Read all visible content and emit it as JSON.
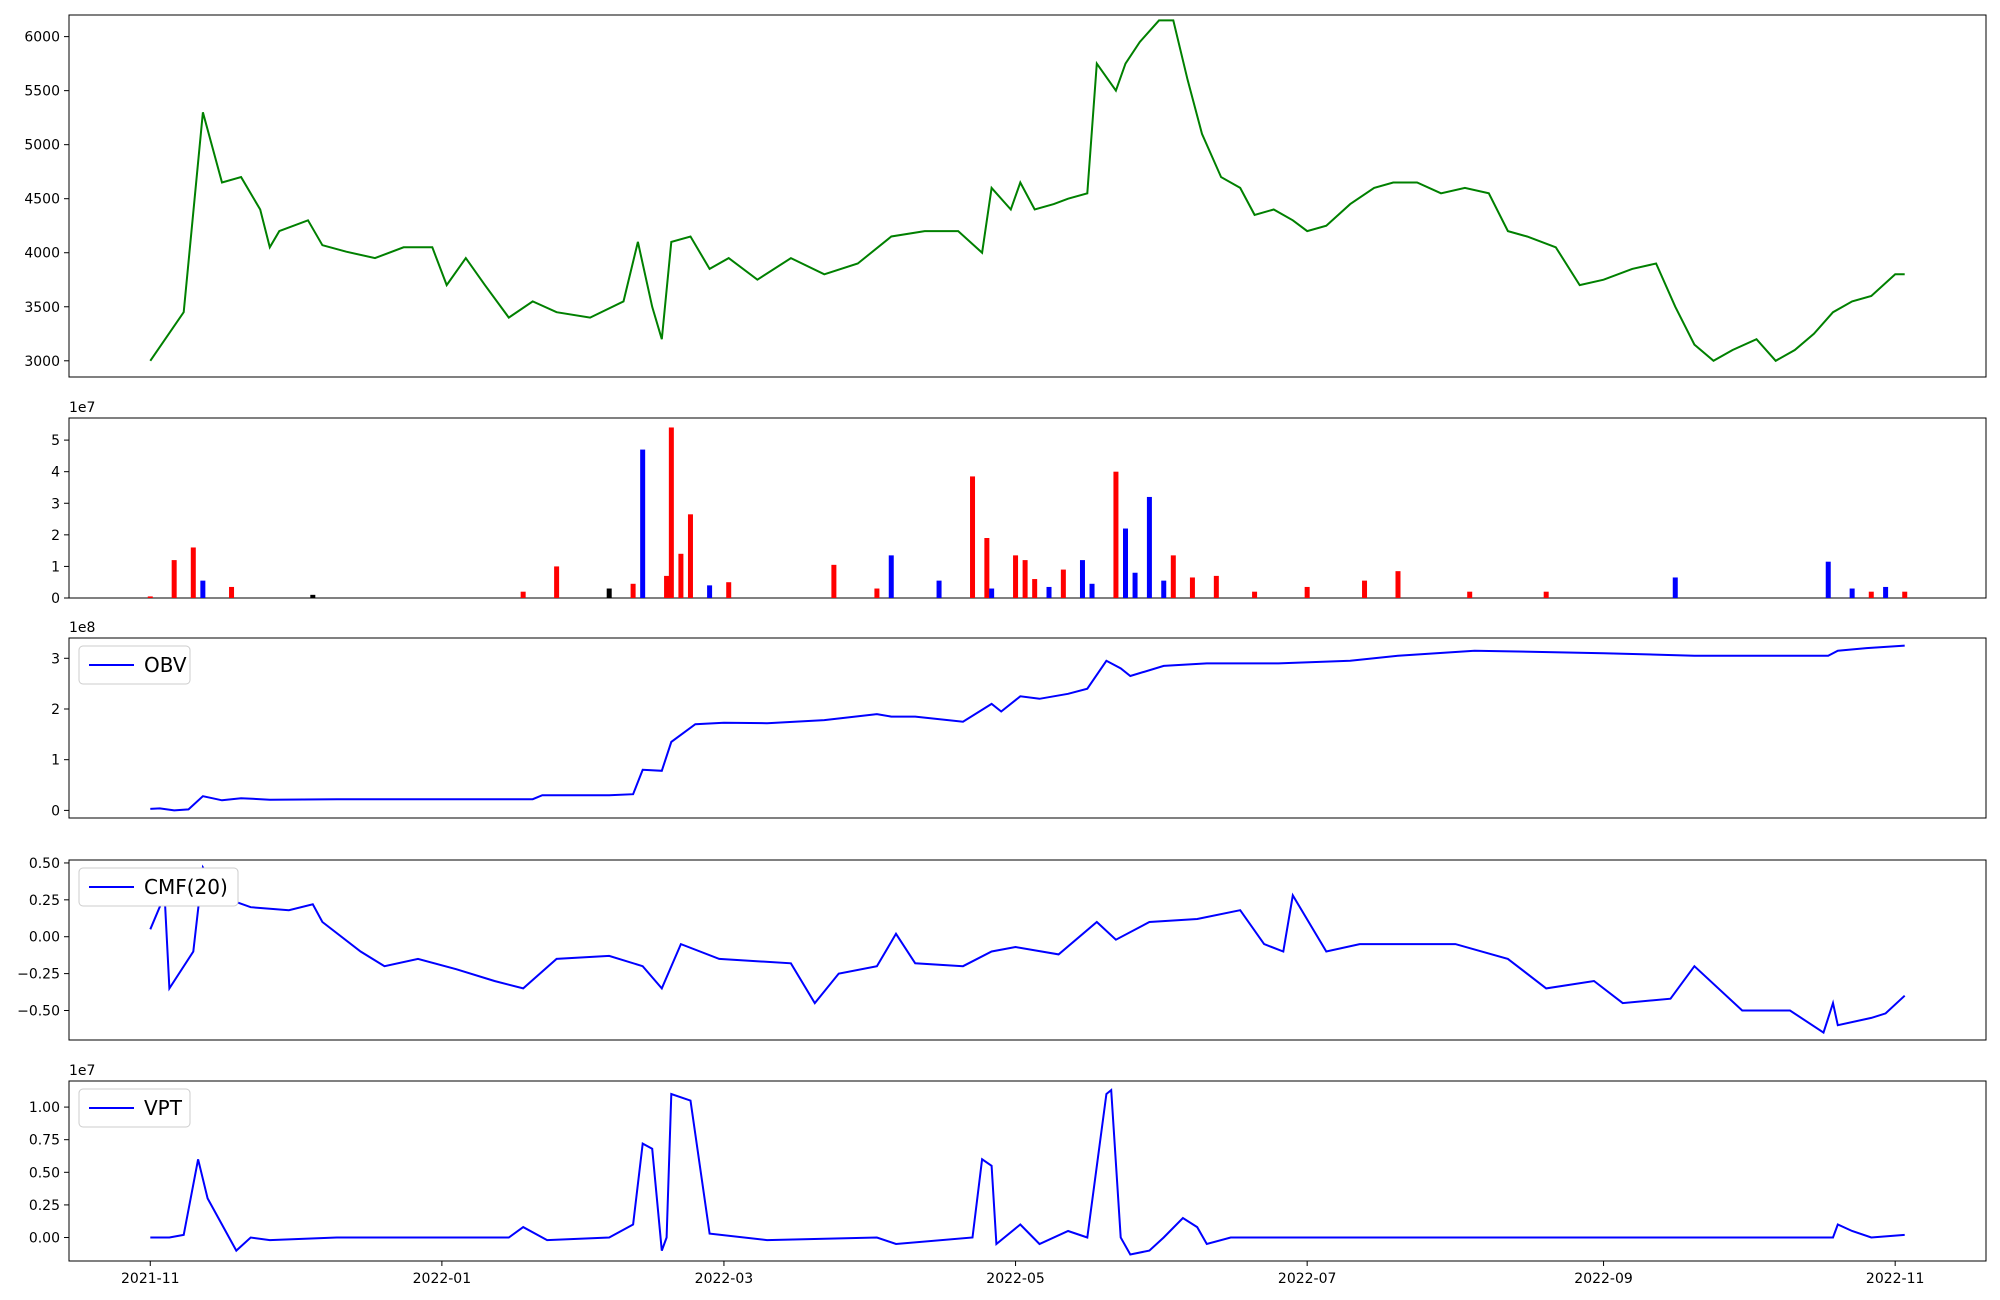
{
  "x_ticks": [
    "2021-11",
    "2022-01",
    "2022-03",
    "2022-05",
    "2022-07",
    "2022-09",
    "2022-11"
  ],
  "chart_data": [
    {
      "type": "line",
      "series": [
        {
          "color": "#008000",
          "x": [
            "2021-11-01",
            "2021-11-08",
            "2021-11-12",
            "2021-11-16",
            "2021-11-20",
            "2021-11-24",
            "2021-11-26",
            "2021-11-28",
            "2021-12-04",
            "2021-12-07",
            "2021-12-12",
            "2021-12-18",
            "2021-12-24",
            "2021-12-30",
            "2022-01-02",
            "2022-01-06",
            "2022-01-10",
            "2022-01-15",
            "2022-01-20",
            "2022-01-25",
            "2022-02-01",
            "2022-02-08",
            "2022-02-11",
            "2022-02-14",
            "2022-02-16",
            "2022-02-18",
            "2022-02-22",
            "2022-02-26",
            "2022-03-02",
            "2022-03-08",
            "2022-03-15",
            "2022-03-22",
            "2022-03-29",
            "2022-04-05",
            "2022-04-12",
            "2022-04-19",
            "2022-04-24",
            "2022-04-26",
            "2022-04-30",
            "2022-05-02",
            "2022-05-05",
            "2022-05-09",
            "2022-05-12",
            "2022-05-16",
            "2022-05-18",
            "2022-05-22",
            "2022-05-24",
            "2022-05-27",
            "2022-05-31",
            "2022-06-03",
            "2022-06-06",
            "2022-06-09",
            "2022-06-13",
            "2022-06-17",
            "2022-06-20",
            "2022-06-24",
            "2022-06-28",
            "2022-07-01",
            "2022-07-05",
            "2022-07-10",
            "2022-07-15",
            "2022-07-19",
            "2022-07-24",
            "2022-07-29",
            "2022-08-03",
            "2022-08-08",
            "2022-08-12",
            "2022-08-16",
            "2022-08-22",
            "2022-08-27",
            "2022-09-01",
            "2022-09-07",
            "2022-09-12",
            "2022-09-16",
            "2022-09-20",
            "2022-09-24",
            "2022-09-28",
            "2022-10-03",
            "2022-10-07",
            "2022-10-11",
            "2022-10-15",
            "2022-10-19",
            "2022-10-23",
            "2022-10-27",
            "2022-11-01",
            "2022-11-03"
          ],
          "values": [
            3000,
            3450,
            5300,
            4650,
            4700,
            4400,
            4050,
            4200,
            4300,
            4070,
            4010,
            3950,
            4050,
            4050,
            3700,
            3950,
            3700,
            3400,
            3550,
            3450,
            3400,
            3550,
            4100,
            3500,
            3200,
            4100,
            4150,
            3850,
            3950,
            3750,
            3950,
            3800,
            3900,
            4150,
            4200,
            4200,
            4000,
            4600,
            4400,
            4650,
            4400,
            4450,
            4500,
            4550,
            5750,
            5500,
            5750,
            5950,
            6150,
            6150,
            5600,
            5100,
            4700,
            4600,
            4350,
            4400,
            4300,
            4200,
            4250,
            4450,
            4600,
            4650,
            4650,
            4550,
            4600,
            4550,
            4200,
            4150,
            4050,
            3700,
            3750,
            3850,
            3900,
            3500,
            3150,
            3000,
            3100,
            3200,
            3000,
            3100,
            3250,
            3450,
            3550,
            3600,
            3800,
            3800
          ]
        }
      ]
    },
    {
      "type": "bar",
      "ylabel_offset": "1e7",
      "series": [
        {
          "x": [
            "2021-11-01",
            "2021-11-06",
            "2021-11-10",
            "2021-11-12",
            "2021-11-18",
            "2021-12-05",
            "2022-01-18",
            "2022-01-25",
            "2022-02-05",
            "2022-02-10",
            "2022-02-12",
            "2022-02-17",
            "2022-02-18",
            "2022-02-20",
            "2022-02-22",
            "2022-02-26",
            "2022-03-02",
            "2022-03-24",
            "2022-04-02",
            "2022-04-05",
            "2022-04-15",
            "2022-04-22",
            "2022-04-25",
            "2022-04-26",
            "2022-05-01",
            "2022-05-03",
            "2022-05-05",
            "2022-05-08",
            "2022-05-11",
            "2022-05-15",
            "2022-05-17",
            "2022-05-22",
            "2022-05-24",
            "2022-05-26",
            "2022-05-29",
            "2022-06-01",
            "2022-06-03",
            "2022-06-07",
            "2022-06-12",
            "2022-06-20",
            "2022-07-01",
            "2022-07-13",
            "2022-07-20",
            "2022-08-04",
            "2022-08-20",
            "2022-09-16",
            "2022-10-18",
            "2022-10-23",
            "2022-10-27",
            "2022-10-30",
            "2022-11-03"
          ],
          "values": [
            0.05,
            1.2,
            1.6,
            0.55,
            0.35,
            0.1,
            0.2,
            1.0,
            0.3,
            0.45,
            4.7,
            0.7,
            5.4,
            1.4,
            2.65,
            0.4,
            0.5,
            1.05,
            0.3,
            1.35,
            0.55,
            3.85,
            1.9,
            0.3,
            1.35,
            1.2,
            0.6,
            0.35,
            0.9,
            1.2,
            0.45,
            4.0,
            2.2,
            0.8,
            3.2,
            0.55,
            1.35,
            0.65,
            0.7,
            0.2,
            0.35,
            0.55,
            0.85,
            0.2,
            0.2,
            0.65,
            1.15,
            0.3,
            0.2,
            0.35,
            0.2
          ],
          "colors": [
            "red",
            "red",
            "red",
            "blue",
            "red",
            "black",
            "red",
            "red",
            "black",
            "red",
            "blue",
            "red",
            "red",
            "red",
            "red",
            "blue",
            "red",
            "red",
            "red",
            "blue",
            "blue",
            "red",
            "red",
            "blue",
            "red",
            "red",
            "red",
            "blue",
            "red",
            "blue",
            "blue",
            "red",
            "blue",
            "blue",
            "blue",
            "blue",
            "red",
            "red",
            "red",
            "red",
            "red",
            "red",
            "red",
            "red",
            "red",
            "blue",
            "blue",
            "blue",
            "red",
            "blue",
            "red"
          ]
        }
      ]
    },
    {
      "type": "line",
      "ylabel_offset": "1e8",
      "legend": "OBV",
      "series": [
        {
          "name": "OBV",
          "color": "#0000ff",
          "x": [
            "2021-11-01",
            "2021-11-03",
            "2021-11-06",
            "2021-11-09",
            "2021-11-12",
            "2021-11-16",
            "2021-11-20",
            "2021-11-26",
            "2021-12-10",
            "2022-01-01",
            "2022-01-20",
            "2022-01-22",
            "2022-02-05",
            "2022-02-10",
            "2022-02-12",
            "2022-02-16",
            "2022-02-18",
            "2022-02-23",
            "2022-03-01",
            "2022-03-10",
            "2022-03-22",
            "2022-04-02",
            "2022-04-05",
            "2022-04-10",
            "2022-04-20",
            "2022-04-26",
            "2022-04-28",
            "2022-05-02",
            "2022-05-06",
            "2022-05-12",
            "2022-05-16",
            "2022-05-20",
            "2022-05-23",
            "2022-05-25",
            "2022-06-01",
            "2022-06-10",
            "2022-06-25",
            "2022-07-10",
            "2022-07-20",
            "2022-08-05",
            "2022-09-01",
            "2022-09-20",
            "2022-10-01",
            "2022-10-18",
            "2022-10-20",
            "2022-10-26",
            "2022-11-03"
          ],
          "values": [
            0.03,
            0.04,
            0.0,
            0.02,
            0.28,
            0.2,
            0.24,
            0.21,
            0.22,
            0.22,
            0.22,
            0.3,
            0.3,
            0.32,
            0.8,
            0.78,
            1.35,
            1.7,
            1.73,
            1.72,
            1.78,
            1.9,
            1.85,
            1.85,
            1.75,
            2.1,
            1.95,
            2.25,
            2.2,
            2.3,
            2.4,
            2.95,
            2.8,
            2.65,
            2.85,
            2.9,
            2.9,
            2.95,
            3.05,
            3.15,
            3.1,
            3.05,
            3.05,
            3.05,
            3.15,
            3.2,
            3.25
          ]
        }
      ]
    },
    {
      "type": "line",
      "legend": "CMF(20)",
      "series": [
        {
          "name": "CMF(20)",
          "color": "#0000ff",
          "x": [
            "2021-11-01",
            "2021-11-04",
            "2021-11-05",
            "2021-11-10",
            "2021-11-12",
            "2021-11-16",
            "2021-11-22",
            "2021-11-30",
            "2021-12-05",
            "2021-12-07",
            "2021-12-15",
            "2021-12-20",
            "2021-12-27",
            "2022-01-04",
            "2022-01-12",
            "2022-01-18",
            "2022-01-25",
            "2022-02-05",
            "2022-02-12",
            "2022-02-16",
            "2022-02-20",
            "2022-02-28",
            "2022-03-15",
            "2022-03-20",
            "2022-03-25",
            "2022-04-02",
            "2022-04-06",
            "2022-04-10",
            "2022-04-20",
            "2022-04-26",
            "2022-05-01",
            "2022-05-10",
            "2022-05-18",
            "2022-05-22",
            "2022-05-29",
            "2022-06-08",
            "2022-06-17",
            "2022-06-22",
            "2022-06-26",
            "2022-06-28",
            "2022-07-05",
            "2022-07-12",
            "2022-07-20",
            "2022-08-01",
            "2022-08-12",
            "2022-08-20",
            "2022-08-30",
            "2022-09-05",
            "2022-09-15",
            "2022-09-20",
            "2022-09-30",
            "2022-10-10",
            "2022-10-17",
            "2022-10-19",
            "2022-10-20",
            "2022-10-27",
            "2022-10-30",
            "2022-11-03"
          ],
          "values": [
            0.05,
            0.28,
            -0.35,
            -0.1,
            0.47,
            0.27,
            0.2,
            0.18,
            0.22,
            0.1,
            -0.1,
            -0.2,
            -0.15,
            -0.22,
            -0.3,
            -0.35,
            -0.15,
            -0.13,
            -0.2,
            -0.35,
            -0.05,
            -0.15,
            -0.18,
            -0.45,
            -0.25,
            -0.2,
            0.02,
            -0.18,
            -0.2,
            -0.1,
            -0.07,
            -0.12,
            0.1,
            -0.02,
            0.1,
            0.12,
            0.18,
            -0.05,
            -0.1,
            0.28,
            -0.1,
            -0.05,
            -0.05,
            -0.05,
            -0.15,
            -0.35,
            -0.3,
            -0.45,
            -0.42,
            -0.2,
            -0.5,
            -0.5,
            -0.65,
            -0.45,
            -0.6,
            -0.55,
            -0.52,
            -0.4
          ]
        }
      ]
    },
    {
      "type": "line",
      "ylabel_offset": "1e7",
      "legend": "VPT",
      "series": [
        {
          "name": "VPT",
          "color": "#0000ff",
          "x": [
            "2021-11-01",
            "2021-11-05",
            "2021-11-08",
            "2021-11-11",
            "2021-11-13",
            "2021-11-19",
            "2021-11-22",
            "2021-11-26",
            "2021-12-10",
            "2022-01-15",
            "2022-01-18",
            "2022-01-23",
            "2022-02-05",
            "2022-02-10",
            "2022-02-12",
            "2022-02-14",
            "2022-02-16",
            "2022-02-17",
            "2022-02-18",
            "2022-02-22",
            "2022-02-26",
            "2022-03-10",
            "2022-04-02",
            "2022-04-06",
            "2022-04-22",
            "2022-04-24",
            "2022-04-26",
            "2022-04-27",
            "2022-05-02",
            "2022-05-06",
            "2022-05-12",
            "2022-05-16",
            "2022-05-20",
            "2022-05-21",
            "2022-05-23",
            "2022-05-25",
            "2022-05-29",
            "2022-06-01",
            "2022-06-05",
            "2022-06-08",
            "2022-06-10",
            "2022-06-15",
            "2022-07-01",
            "2022-07-20",
            "2022-08-01",
            "2022-09-01",
            "2022-10-19",
            "2022-10-20",
            "2022-10-23",
            "2022-10-27",
            "2022-11-03"
          ],
          "values": [
            0.0,
            0.0,
            0.02,
            0.6,
            0.3,
            -0.1,
            0.0,
            -0.02,
            0.0,
            0.0,
            0.08,
            -0.02,
            0.0,
            0.1,
            0.72,
            0.68,
            -0.1,
            0.0,
            1.1,
            1.05,
            0.03,
            -0.02,
            0.0,
            -0.05,
            0.0,
            0.6,
            0.55,
            -0.05,
            0.1,
            -0.05,
            0.05,
            0.0,
            1.1,
            1.13,
            0.0,
            -0.13,
            -0.1,
            0.0,
            0.15,
            0.08,
            -0.05,
            0.0,
            0.0,
            0.0,
            0.0,
            0.0,
            0.0,
            0.1,
            0.05,
            0.0,
            0.02
          ]
        }
      ]
    }
  ],
  "y_ticks": [
    [
      "3000",
      "3500",
      "4000",
      "4500",
      "5000",
      "5500",
      "6000"
    ],
    [
      "0",
      "1",
      "2",
      "3",
      "4",
      "5"
    ],
    [
      "0",
      "1",
      "2",
      "3"
    ],
    [
      "−0.50",
      "−0.25",
      "0.00",
      "0.25",
      "0.50"
    ],
    [
      "0.00",
      "0.25",
      "0.50",
      "0.75",
      "1.00"
    ]
  ]
}
